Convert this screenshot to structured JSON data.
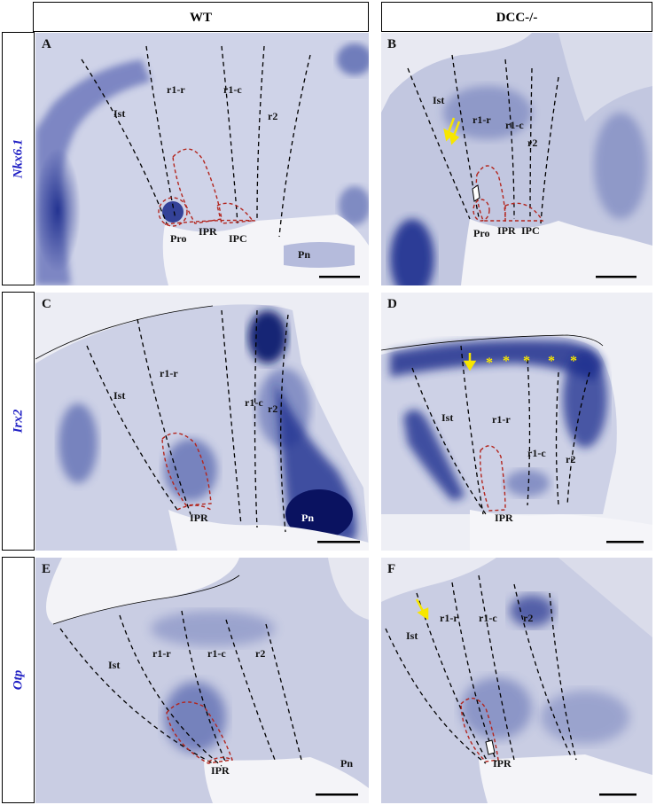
{
  "columns": [
    "WT",
    "DCC-/-"
  ],
  "rows": [
    "Nkx6.1",
    "Irx2",
    "Otp"
  ],
  "panels": {
    "A": {
      "letter": "A",
      "regions": {
        "ist": "Ist",
        "r1r": "r1-r",
        "r1c": "r1-c",
        "r2": "r2",
        "pro": "Pro",
        "ipr": "IPR",
        "ipc": "IPC",
        "pn": "Pn"
      }
    },
    "B": {
      "letter": "B",
      "regions": {
        "ist": "Ist",
        "r1r": "r1-r",
        "r1c": "r1-c",
        "r2": "r2",
        "pro": "Pro",
        "ipr": "IPR",
        "ipc": "IPC"
      }
    },
    "C": {
      "letter": "C",
      "regions": {
        "ist": "Ist",
        "r1r": "r1-r",
        "r1c": "r1-c",
        "r2": "r2",
        "ipr": "IPR",
        "pn": "Pn"
      }
    },
    "D": {
      "letter": "D",
      "regions": {
        "ist": "Ist",
        "r1r": "r1-r",
        "r1c": "r1-c",
        "r2": "r2",
        "ipr": "IPR"
      },
      "stars": [
        "*",
        "*",
        "*",
        "*",
        "*"
      ]
    },
    "E": {
      "letter": "E",
      "regions": {
        "ist": "Ist",
        "r1r": "r1-r",
        "r1c": "r1-c",
        "r2": "r2",
        "ipr": "IPR",
        "pn": "Pn"
      }
    },
    "F": {
      "letter": "F",
      "regions": {
        "ist": "Ist",
        "r1r": "r1-r",
        "r1c": "r1-c",
        "r2": "r2",
        "ipr": "IPR"
      }
    }
  },
  "colors": {
    "stain": "#1f2f8f",
    "tissue": "#c9cde3",
    "boundary_black": "#000000",
    "boundary_red": "#b3261e",
    "arrow": "#f7e600",
    "row_label": "#1f1fc4"
  }
}
